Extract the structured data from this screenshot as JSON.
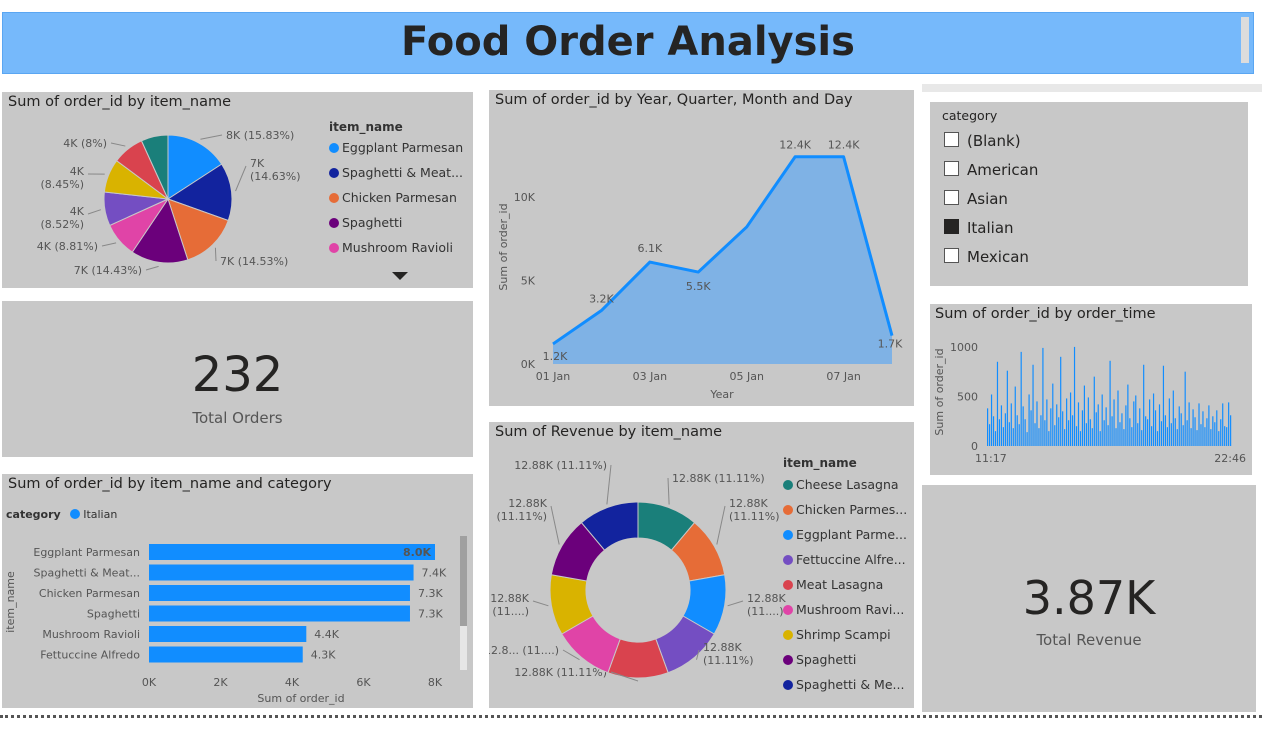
{
  "page_title": "Food Order Analysis",
  "pie_items": {
    "title": "Sum of order_id by item_name",
    "legend_title": "item_name",
    "legend": [
      {
        "label": "Eggplant Parmesan",
        "color": "#118dff"
      },
      {
        "label": "Spaghetti & Meat...",
        "color": "#12239e"
      },
      {
        "label": "Chicken Parmesan",
        "color": "#e66c37"
      },
      {
        "label": "Spaghetti",
        "color": "#6b007b"
      },
      {
        "label": "Mushroom Ravioli",
        "color": "#e044a7"
      }
    ]
  },
  "area_chart": {
    "title": "Sum of order_id by Year, Quarter, Month and Day",
    "x_title": "Year",
    "y_title": "Sum of order_id"
  },
  "category_slicer": {
    "title": "category",
    "items": [
      {
        "label": "(Blank)",
        "checked": false
      },
      {
        "label": "American",
        "checked": false
      },
      {
        "label": "Asian",
        "checked": false
      },
      {
        "label": "Italian",
        "checked": true
      },
      {
        "label": "Mexican",
        "checked": false
      }
    ]
  },
  "card_orders": {
    "value": "232",
    "label": "Total Orders"
  },
  "card_revenue": {
    "value": "3.87K",
    "label": "Total Revenue"
  },
  "time_chart": {
    "title": "Sum of order_id by order_time",
    "y_title": "Sum of order_id",
    "x_start": "11:17",
    "x_end": "22:46"
  },
  "bar_chart": {
    "title": "Sum of order_id by item_name and category",
    "legend_title": "category",
    "legend_item": "Italian",
    "x_title": "Sum of order_id",
    "y_title": "item_name"
  },
  "donut": {
    "title": "Sum of Revenue by item_name",
    "legend_title": "item_name",
    "legend": [
      {
        "label": "Cheese Lasagna",
        "color": "#1a7f7a"
      },
      {
        "label": "Chicken Parmes...",
        "color": "#e66c37"
      },
      {
        "label": "Eggplant Parme...",
        "color": "#118dff"
      },
      {
        "label": "Fettuccine Alfre...",
        "color": "#744ec2"
      },
      {
        "label": "Meat Lasagna",
        "color": "#d9434e"
      },
      {
        "label": "Mushroom Ravi...",
        "color": "#e044a7"
      },
      {
        "label": "Shrimp Scampi",
        "color": "#d9b300"
      },
      {
        "label": "Spaghetti",
        "color": "#6b007b"
      },
      {
        "label": "Spaghetti & Me...",
        "color": "#12239e"
      }
    ]
  },
  "chart_data": [
    {
      "type": "pie",
      "title": "Sum of order_id by item_name",
      "slices": [
        {
          "label": "Eggplant Parmesan",
          "value": 8,
          "pct": 15.83,
          "text": "8K (15.83%)",
          "color": "#118dff"
        },
        {
          "label": "Spaghetti & Meatballs",
          "value": 7,
          "pct": 14.63,
          "text": "7K (14.63%)",
          "color": "#12239e"
        },
        {
          "label": "Chicken Parmesan",
          "value": 7,
          "pct": 14.53,
          "text": "7K (14.53%)",
          "color": "#e66c37"
        },
        {
          "label": "Spaghetti",
          "value": 7,
          "pct": 14.43,
          "text": "7K (14.43%)",
          "color": "#6b007b"
        },
        {
          "label": "Mushroom Ravioli",
          "value": 4,
          "pct": 8.81,
          "text": "4K (8.81%)",
          "color": "#e044a7"
        },
        {
          "label": "",
          "value": 4,
          "pct": 8.52,
          "text": "4K (8.52%)",
          "color": "#744ec2"
        },
        {
          "label": "",
          "value": 4,
          "pct": 8.45,
          "text": "4K (8.45%)",
          "color": "#d9b300"
        },
        {
          "label": "",
          "value": 4,
          "pct": 8.0,
          "text": "4K (8%)",
          "color": "#d9434e"
        },
        {
          "label": "",
          "value": 4,
          "pct": 6.8,
          "text": "",
          "color": "#1a7f7a"
        }
      ]
    },
    {
      "type": "area",
      "title": "Sum of order_id by Year, Quarter, Month and Day",
      "x": [
        "01 Jan",
        "02 Jan",
        "03 Jan",
        "04 Jan",
        "05 Jan",
        "06 Jan",
        "07 Jan",
        "08 Jan"
      ],
      "x_ticks": [
        "01 Jan",
        "03 Jan",
        "05 Jan",
        "07 Jan"
      ],
      "values": [
        1200,
        3200,
        6100,
        5500,
        8200,
        12400,
        12400,
        1700
      ],
      "labels": [
        "1.2K",
        "3.2K",
        "6.1K",
        "5.5K",
        "",
        "12.4K",
        "12.4K",
        "1.7K"
      ],
      "y_ticks": [
        "0K",
        "5K",
        "10K"
      ],
      "ylim": [
        0,
        14000
      ],
      "xlabel": "Year",
      "ylabel": "Sum of order_id",
      "color": "#118dff"
    },
    {
      "type": "bar",
      "title": "Sum of order_id by item_name and category",
      "categories": [
        "Eggplant Parmesan",
        "Spaghetti & Meat...",
        "Chicken Parmesan",
        "Spaghetti",
        "Mushroom Ravioli",
        "Fettuccine Alfredo"
      ],
      "values": [
        8000,
        7400,
        7300,
        7300,
        4400,
        4300
      ],
      "labels": [
        "8.0K",
        "7.4K",
        "7.3K",
        "7.3K",
        "4.4K",
        "4.3K"
      ],
      "x_ticks": [
        "0K",
        "2K",
        "4K",
        "6K",
        "8K"
      ],
      "xlim": [
        0,
        8000
      ],
      "xlabel": "Sum of order_id",
      "ylabel": "item_name",
      "series": [
        {
          "name": "Italian",
          "color": "#118dff"
        }
      ]
    },
    {
      "type": "pie",
      "donut": true,
      "title": "Sum of Revenue by item_name",
      "slices": [
        {
          "label": "Cheese Lasagna",
          "value": 12.88,
          "text": "12.88K (11.11%)",
          "color": "#1a7f7a"
        },
        {
          "label": "Chicken Parmesan",
          "value": 12.88,
          "text": "12.88K (11.11%)",
          "color": "#e66c37"
        },
        {
          "label": "Eggplant Parmesan",
          "value": 12.88,
          "text": "12.88K (11....)",
          "color": "#118dff"
        },
        {
          "label": "Fettuccine Alfredo",
          "value": 12.88,
          "text": "12.88K (11.11%)",
          "color": "#744ec2"
        },
        {
          "label": "Meat Lasagna",
          "value": 12.88,
          "text": "12.88K (11.11%)",
          "color": "#d9434e"
        },
        {
          "label": "Mushroom Ravioli",
          "value": 12.88,
          "text": "12.8... (11....)",
          "color": "#e044a7"
        },
        {
          "label": "Shrimp Scampi",
          "value": 12.88,
          "text": "12.88K (11....)",
          "color": "#d9b300"
        },
        {
          "label": "Spaghetti",
          "value": 12.88,
          "text": "12.88K (11.11%)",
          "color": "#6b007b"
        },
        {
          "label": "Spaghetti & Meatballs",
          "value": 12.88,
          "text": "12.88K (11.11%)",
          "color": "#12239e"
        }
      ]
    },
    {
      "type": "bar",
      "title": "Sum of order_id by order_time",
      "x_ticks": [
        "11:17",
        "22:46"
      ],
      "y_ticks": [
        "0",
        "500",
        "1000"
      ],
      "ylim": [
        0,
        1100
      ],
      "ylabel": "Sum of order_id",
      "values": [
        380,
        220,
        520,
        300,
        150,
        850,
        270,
        410,
        190,
        330,
        760,
        240,
        430,
        180,
        600,
        310,
        220,
        950,
        400,
        270,
        140,
        520,
        360,
        820,
        230,
        450,
        180,
        310,
        990,
        260,
        470,
        150,
        380,
        630,
        210,
        420,
        290,
        900,
        350,
        170,
        480,
        260,
        540,
        310,
        1000,
        200,
        440,
        150,
        360,
        610,
        230,
        490,
        270,
        180,
        700,
        340,
        420,
        150,
        520,
        260,
        390,
        210,
        860,
        300,
        470,
        180,
        560,
        240,
        330,
        170,
        410,
        620,
        280,
        190,
        450,
        510,
        230,
        380,
        160,
        820,
        300,
        270,
        470,
        200,
        530,
        360,
        150,
        420,
        250,
        810,
        310,
        190,
        480,
        230,
        560,
        280,
        170,
        400,
        330,
        210,
        750,
        260,
        440,
        180,
        370,
        290,
        160,
        430,
        220,
        350,
        190,
        280,
        410,
        170,
        300,
        240,
        360,
        150,
        270,
        430,
        200,
        190,
        440,
        310
      ]
    }
  ]
}
